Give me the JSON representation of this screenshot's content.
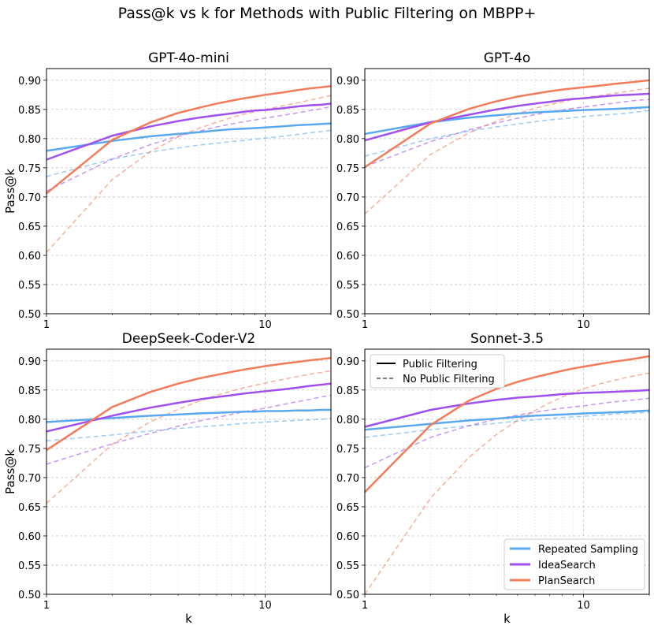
{
  "figure": {
    "suptitle": "Pass@k vs k for Methods with Public Filtering on MBPP+"
  },
  "colors": {
    "Repeated Sampling": "#5aa9ee",
    "IdeaSearch": "#a050ee",
    "PlanSearch": "#f47b5a"
  },
  "legends": {
    "style": [
      "Public Filtering",
      "No Public Filtering"
    ],
    "methods": [
      "Repeated Sampling",
      "IdeaSearch",
      "PlanSearch"
    ]
  },
  "chart_data": [
    {
      "type": "line",
      "title": "GPT-4o-mini",
      "xlabel": "",
      "ylabel": "Pass@k",
      "xscale": "log",
      "xlim": [
        1,
        20
      ],
      "ylim": [
        0.5,
        0.92
      ],
      "xticks": [
        "1",
        "10"
      ],
      "yticks": [
        "0.50",
        "0.55",
        "0.60",
        "0.65",
        "0.70",
        "0.75",
        "0.80",
        "0.85",
        "0.90"
      ],
      "grid": true,
      "x": [
        1,
        2,
        3,
        4,
        5,
        6,
        7,
        8,
        9,
        10,
        12,
        14,
        16,
        18,
        20
      ],
      "series": [
        {
          "name": "Repeated Sampling",
          "style": "Public Filtering",
          "values": [
            0.779,
            0.796,
            0.804,
            0.808,
            0.811,
            0.814,
            0.816,
            0.817,
            0.818,
            0.819,
            0.821,
            0.823,
            0.824,
            0.825,
            0.826
          ]
        },
        {
          "name": "IdeaSearch",
          "style": "Public Filtering",
          "values": [
            0.764,
            0.805,
            0.821,
            0.83,
            0.836,
            0.84,
            0.843,
            0.846,
            0.848,
            0.849,
            0.852,
            0.855,
            0.857,
            0.858,
            0.86
          ]
        },
        {
          "name": "PlanSearch",
          "style": "Public Filtering",
          "values": [
            0.706,
            0.798,
            0.828,
            0.844,
            0.853,
            0.86,
            0.865,
            0.869,
            0.872,
            0.875,
            0.879,
            0.883,
            0.886,
            0.888,
            0.89
          ]
        },
        {
          "name": "Repeated Sampling",
          "style": "No Public Filtering",
          "values": [
            0.735,
            0.765,
            0.777,
            0.784,
            0.789,
            0.792,
            0.795,
            0.797,
            0.799,
            0.801,
            0.804,
            0.807,
            0.81,
            0.812,
            0.814
          ]
        },
        {
          "name": "IdeaSearch",
          "style": "No Public Filtering",
          "values": [
            0.71,
            0.765,
            0.79,
            0.804,
            0.813,
            0.82,
            0.825,
            0.829,
            0.832,
            0.835,
            0.84,
            0.844,
            0.848,
            0.851,
            0.855
          ]
        },
        {
          "name": "PlanSearch",
          "style": "No Public Filtering",
          "values": [
            0.605,
            0.73,
            0.778,
            0.803,
            0.818,
            0.828,
            0.836,
            0.842,
            0.846,
            0.85,
            0.856,
            0.861,
            0.866,
            0.87,
            0.874
          ]
        }
      ]
    },
    {
      "type": "line",
      "title": "GPT-4o",
      "xlabel": "",
      "ylabel": "",
      "xscale": "log",
      "xlim": [
        1,
        20
      ],
      "ylim": [
        0.5,
        0.92
      ],
      "xticks": [
        "1",
        "10"
      ],
      "yticks": [
        "0.50",
        "0.55",
        "0.60",
        "0.65",
        "0.70",
        "0.75",
        "0.80",
        "0.85",
        "0.90"
      ],
      "grid": true,
      "x": [
        1,
        2,
        3,
        4,
        5,
        6,
        7,
        8,
        9,
        10,
        12,
        14,
        16,
        18,
        20
      ],
      "series": [
        {
          "name": "Repeated Sampling",
          "style": "Public Filtering",
          "values": [
            0.808,
            0.828,
            0.836,
            0.84,
            0.843,
            0.845,
            0.846,
            0.847,
            0.848,
            0.849,
            0.85,
            0.851,
            0.852,
            0.853,
            0.854
          ]
        },
        {
          "name": "IdeaSearch",
          "style": "Public Filtering",
          "values": [
            0.797,
            0.828,
            0.841,
            0.85,
            0.856,
            0.86,
            0.863,
            0.866,
            0.868,
            0.869,
            0.872,
            0.874,
            0.875,
            0.876,
            0.877
          ]
        },
        {
          "name": "PlanSearch",
          "style": "Public Filtering",
          "values": [
            0.751,
            0.826,
            0.851,
            0.864,
            0.872,
            0.877,
            0.881,
            0.884,
            0.886,
            0.888,
            0.891,
            0.894,
            0.896,
            0.898,
            0.9
          ]
        },
        {
          "name": "Repeated Sampling",
          "style": "No Public Filtering",
          "values": [
            0.77,
            0.8,
            0.813,
            0.82,
            0.825,
            0.829,
            0.832,
            0.834,
            0.836,
            0.838,
            0.84,
            0.842,
            0.844,
            0.846,
            0.848
          ]
        },
        {
          "name": "IdeaSearch",
          "style": "No Public Filtering",
          "values": [
            0.752,
            0.795,
            0.815,
            0.827,
            0.835,
            0.841,
            0.846,
            0.849,
            0.852,
            0.854,
            0.858,
            0.861,
            0.864,
            0.866,
            0.867
          ]
        },
        {
          "name": "PlanSearch",
          "style": "No Public Filtering",
          "values": [
            0.671,
            0.773,
            0.81,
            0.83,
            0.843,
            0.852,
            0.858,
            0.863,
            0.867,
            0.87,
            0.874,
            0.878,
            0.881,
            0.884,
            0.886
          ]
        }
      ]
    },
    {
      "type": "line",
      "title": "DeepSeek-Coder-V2",
      "xlabel": "k",
      "ylabel": "Pass@k",
      "xscale": "log",
      "xlim": [
        1,
        20
      ],
      "ylim": [
        0.5,
        0.92
      ],
      "xticks": [
        "1",
        "10"
      ],
      "yticks": [
        "0.50",
        "0.55",
        "0.60",
        "0.65",
        "0.70",
        "0.75",
        "0.80",
        "0.85",
        "0.90"
      ],
      "grid": true,
      "x": [
        1,
        2,
        3,
        4,
        5,
        6,
        7,
        8,
        9,
        10,
        12,
        14,
        16,
        18,
        20
      ],
      "series": [
        {
          "name": "Repeated Sampling",
          "style": "Public Filtering",
          "values": [
            0.795,
            0.802,
            0.806,
            0.808,
            0.81,
            0.811,
            0.812,
            0.813,
            0.813,
            0.814,
            0.814,
            0.815,
            0.815,
            0.816,
            0.816
          ]
        },
        {
          "name": "IdeaSearch",
          "style": "Public Filtering",
          "values": [
            0.779,
            0.806,
            0.82,
            0.828,
            0.834,
            0.838,
            0.841,
            0.844,
            0.846,
            0.848,
            0.851,
            0.854,
            0.857,
            0.859,
            0.861
          ]
        },
        {
          "name": "PlanSearch",
          "style": "Public Filtering",
          "values": [
            0.747,
            0.821,
            0.847,
            0.861,
            0.87,
            0.876,
            0.881,
            0.885,
            0.888,
            0.891,
            0.895,
            0.898,
            0.901,
            0.903,
            0.905
          ]
        },
        {
          "name": "Repeated Sampling",
          "style": "No Public Filtering",
          "values": [
            0.763,
            0.773,
            0.78,
            0.784,
            0.787,
            0.789,
            0.791,
            0.793,
            0.794,
            0.795,
            0.797,
            0.798,
            0.799,
            0.8,
            0.801
          ]
        },
        {
          "name": "IdeaSearch",
          "style": "No Public Filtering",
          "values": [
            0.723,
            0.758,
            0.776,
            0.788,
            0.797,
            0.803,
            0.808,
            0.813,
            0.816,
            0.819,
            0.825,
            0.83,
            0.834,
            0.838,
            0.841
          ]
        },
        {
          "name": "PlanSearch",
          "style": "No Public Filtering",
          "values": [
            0.656,
            0.757,
            0.796,
            0.817,
            0.831,
            0.841,
            0.848,
            0.854,
            0.858,
            0.862,
            0.868,
            0.873,
            0.877,
            0.88,
            0.883
          ]
        }
      ]
    },
    {
      "type": "line",
      "title": "Sonnet-3.5",
      "xlabel": "k",
      "ylabel": "",
      "xscale": "log",
      "xlim": [
        1,
        20
      ],
      "ylim": [
        0.5,
        0.92
      ],
      "xticks": [
        "1",
        "10"
      ],
      "yticks": [
        "0.50",
        "0.55",
        "0.60",
        "0.65",
        "0.70",
        "0.75",
        "0.80",
        "0.85",
        "0.90"
      ],
      "grid": true,
      "x": [
        1,
        2,
        3,
        4,
        5,
        6,
        7,
        8,
        9,
        10,
        12,
        14,
        16,
        18,
        20
      ],
      "series": [
        {
          "name": "Repeated Sampling",
          "style": "Public Filtering",
          "values": [
            0.782,
            0.792,
            0.798,
            0.801,
            0.804,
            0.806,
            0.807,
            0.808,
            0.809,
            0.81,
            0.811,
            0.812,
            0.813,
            0.814,
            0.815
          ]
        },
        {
          "name": "IdeaSearch",
          "style": "Public Filtering",
          "values": [
            0.787,
            0.816,
            0.827,
            0.833,
            0.837,
            0.839,
            0.841,
            0.843,
            0.844,
            0.845,
            0.846,
            0.847,
            0.848,
            0.849,
            0.85
          ]
        },
        {
          "name": "PlanSearch",
          "style": "Public Filtering",
          "values": [
            0.675,
            0.79,
            0.832,
            0.852,
            0.864,
            0.872,
            0.878,
            0.883,
            0.887,
            0.89,
            0.895,
            0.899,
            0.902,
            0.905,
            0.908
          ]
        },
        {
          "name": "Repeated Sampling",
          "style": "No Public Filtering",
          "values": [
            0.769,
            0.782,
            0.789,
            0.793,
            0.797,
            0.799,
            0.801,
            0.803,
            0.804,
            0.805,
            0.807,
            0.809,
            0.81,
            0.811,
            0.812
          ]
        },
        {
          "name": "IdeaSearch",
          "style": "No Public Filtering",
          "values": [
            0.717,
            0.769,
            0.789,
            0.8,
            0.807,
            0.812,
            0.816,
            0.819,
            0.821,
            0.823,
            0.827,
            0.83,
            0.832,
            0.834,
            0.836
          ]
        },
        {
          "name": "PlanSearch",
          "style": "No Public Filtering",
          "values": [
            0.5,
            0.665,
            0.735,
            0.774,
            0.798,
            0.815,
            0.828,
            0.838,
            0.846,
            0.852,
            0.861,
            0.867,
            0.872,
            0.876,
            0.879
          ]
        }
      ]
    }
  ]
}
